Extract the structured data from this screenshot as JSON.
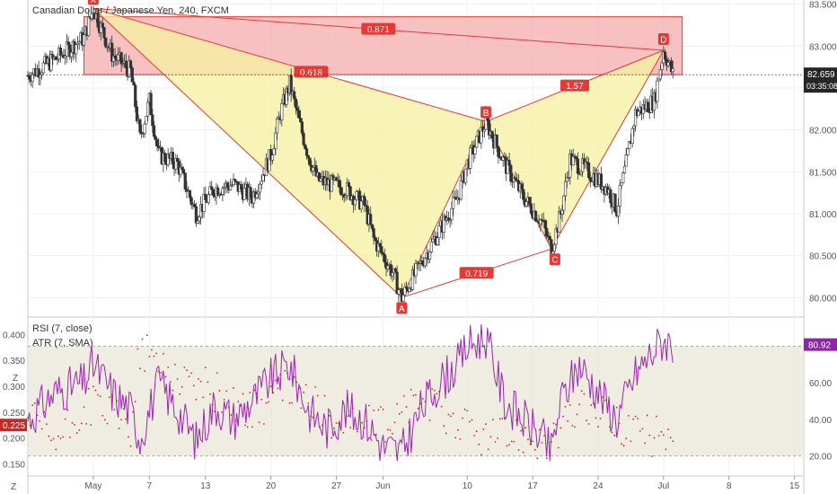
{
  "header": {
    "title": "Canadian Dollar / Japanese Yen, 240, FXCM",
    "rsi_label": "RSI (7, close)",
    "atr_label": "ATR (7, SMA)"
  },
  "price_axis": {
    "ticks": [
      "83.500",
      "83.000",
      "82.500",
      "82.000",
      "81.500",
      "81.000",
      "80.500",
      "80.000"
    ],
    "current_price": "82.659",
    "countdown": "03:35:08"
  },
  "indicator_axis": {
    "left_ticks": [
      "0.400",
      "0.350",
      "0.300",
      "0.250",
      "0.200",
      "0.150"
    ],
    "right_ticks": [
      "80.00",
      "60.00",
      "40.00",
      "20.00"
    ],
    "atr_value": "0.225",
    "rsi_value": "80.92"
  },
  "time_axis": {
    "ticks": [
      "May",
      "7",
      "13",
      "20",
      "27",
      "Jun",
      "10",
      "17",
      "24",
      "Jul",
      "8",
      "15"
    ],
    "left_corner": "Z",
    "bottom_corner": "Z"
  },
  "pattern": {
    "points": [
      {
        "label": "X",
        "date": "2019-05-01",
        "price": 83.45
      },
      {
        "label": "A",
        "date": "2019-06-03",
        "price": 80.0
      },
      {
        "label": "B",
        "date": "2019-06-12",
        "price": 82.1
      },
      {
        "label": "C",
        "date": "2019-06-19",
        "price": 80.58
      },
      {
        "label": "D",
        "date": "2019-07-01",
        "price": 82.95
      }
    ],
    "ratios": [
      "0.871",
      "0.618",
      "1.57",
      "0.719"
    ],
    "fill_color": "#f5f0a0",
    "leg_color": "#e53935",
    "zone_color": "#f4a6a6"
  },
  "chart_data": [
    {
      "type": "candlestick",
      "title": "Canadian Dollar / Japanese Yen, 240, FXCM",
      "x_range": [
        "2019-04-24",
        "2019-07-16"
      ],
      "ylim": [
        79.8,
        83.55
      ],
      "close_path": [
        [
          "2019-04-24",
          82.65
        ],
        [
          "2019-04-27",
          82.85
        ],
        [
          "2019-04-30",
          83.1
        ],
        [
          "2019-05-01",
          83.45
        ],
        [
          "2019-05-03",
          82.9
        ],
        [
          "2019-05-05",
          82.7
        ],
        [
          "2019-05-06",
          81.9
        ],
        [
          "2019-05-07",
          82.35
        ],
        [
          "2019-05-08",
          81.7
        ],
        [
          "2019-05-10",
          81.6
        ],
        [
          "2019-05-12",
          81.0
        ],
        [
          "2019-05-14",
          81.3
        ],
        [
          "2019-05-16",
          81.35
        ],
        [
          "2019-05-18",
          81.2
        ],
        [
          "2019-05-20",
          81.7
        ],
        [
          "2019-05-21",
          82.2
        ],
        [
          "2019-05-22",
          82.55
        ],
        [
          "2019-05-23",
          82.1
        ],
        [
          "2019-05-24",
          81.7
        ],
        [
          "2019-05-25",
          81.4
        ],
        [
          "2019-05-28",
          81.3
        ],
        [
          "2019-05-30",
          81.1
        ],
        [
          "2019-05-31",
          80.7
        ],
        [
          "2019-06-02",
          80.3
        ],
        [
          "2019-06-03",
          80.0
        ],
        [
          "2019-06-05",
          80.4
        ],
        [
          "2019-06-07",
          80.8
        ],
        [
          "2019-06-09",
          81.2
        ],
        [
          "2019-06-10",
          81.6
        ],
        [
          "2019-06-12",
          82.1
        ],
        [
          "2019-06-14",
          81.6
        ],
        [
          "2019-06-16",
          81.2
        ],
        [
          "2019-06-18",
          80.9
        ],
        [
          "2019-06-19",
          80.58
        ],
        [
          "2019-06-20",
          81.0
        ],
        [
          "2019-06-21",
          81.65
        ],
        [
          "2019-06-23",
          81.5
        ],
        [
          "2019-06-25",
          81.3
        ],
        [
          "2019-06-26",
          81.05
        ],
        [
          "2019-06-27",
          81.6
        ],
        [
          "2019-06-28",
          82.2
        ],
        [
          "2019-06-30",
          82.35
        ],
        [
          "2019-07-01",
          82.95
        ],
        [
          "2019-07-02",
          82.66
        ]
      ],
      "current_price": 82.659,
      "patterns": [
        {
          "name": "XABCD",
          "x": [
            "2019-05-01",
            "2019-06-03",
            "2019-06-12",
            "2019-06-19",
            "2019-07-01"
          ],
          "y": [
            83.45,
            80.0,
            82.1,
            80.58,
            82.95
          ]
        }
      ]
    },
    {
      "type": "line",
      "series": [
        {
          "name": "RSI (7, close)",
          "values_over_time": [
            [
              "2019-04-24",
              40
            ],
            [
              "2019-04-27",
              55
            ],
            [
              "2019-04-30",
              60
            ],
            [
              "2019-05-01",
              70
            ],
            [
              "2019-05-03",
              55
            ],
            [
              "2019-05-05",
              45
            ],
            [
              "2019-05-06",
              30
            ],
            [
              "2019-05-08",
              60
            ],
            [
              "2019-05-10",
              45
            ],
            [
              "2019-05-12",
              28
            ],
            [
              "2019-05-14",
              48
            ],
            [
              "2019-05-16",
              40
            ],
            [
              "2019-05-18",
              50
            ],
            [
              "2019-05-20",
              62
            ],
            [
              "2019-05-22",
              70
            ],
            [
              "2019-05-24",
              45
            ],
            [
              "2019-05-26",
              35
            ],
            [
              "2019-05-28",
              45
            ],
            [
              "2019-05-30",
              40
            ],
            [
              "2019-06-01",
              25
            ],
            [
              "2019-06-03",
              22
            ],
            [
              "2019-06-05",
              45
            ],
            [
              "2019-06-07",
              60
            ],
            [
              "2019-06-09",
              70
            ],
            [
              "2019-06-10",
              80
            ],
            [
              "2019-06-12",
              85
            ],
            [
              "2019-06-14",
              50
            ],
            [
              "2019-06-16",
              40
            ],
            [
              "2019-06-18",
              30
            ],
            [
              "2019-06-19",
              22
            ],
            [
              "2019-06-20",
              50
            ],
            [
              "2019-06-22",
              70
            ],
            [
              "2019-06-24",
              55
            ],
            [
              "2019-06-26",
              40
            ],
            [
              "2019-06-28",
              65
            ],
            [
              "2019-06-30",
              78
            ],
            [
              "2019-07-01",
              84
            ],
            [
              "2019-07-02",
              80.92
            ]
          ]
        },
        {
          "name": "ATR (7, SMA)",
          "values_over_time": [
            [
              "2019-04-24",
              0.24
            ],
            [
              "2019-04-27",
              0.19
            ],
            [
              "2019-05-01",
              0.27
            ],
            [
              "2019-05-05",
              0.22
            ],
            [
              "2019-05-06",
              0.37
            ],
            [
              "2019-05-10",
              0.32
            ],
            [
              "2019-05-14",
              0.29
            ],
            [
              "2019-05-18",
              0.25
            ],
            [
              "2019-05-22",
              0.3
            ],
            [
              "2019-05-26",
              0.24
            ],
            [
              "2019-06-01",
              0.22
            ],
            [
              "2019-06-05",
              0.28
            ],
            [
              "2019-06-08",
              0.24
            ],
            [
              "2019-06-12",
              0.2
            ],
            [
              "2019-06-16",
              0.21
            ],
            [
              "2019-06-19",
              0.19
            ],
            [
              "2019-06-22",
              0.26
            ],
            [
              "2019-06-26",
              0.23
            ],
            [
              "2019-06-30",
              0.2
            ],
            [
              "2019-07-02",
              0.225
            ]
          ]
        }
      ],
      "ylim_left": [
        0.13,
        0.43
      ],
      "ylim_right": [
        10,
        95
      ],
      "band": [
        20,
        80
      ]
    }
  ]
}
